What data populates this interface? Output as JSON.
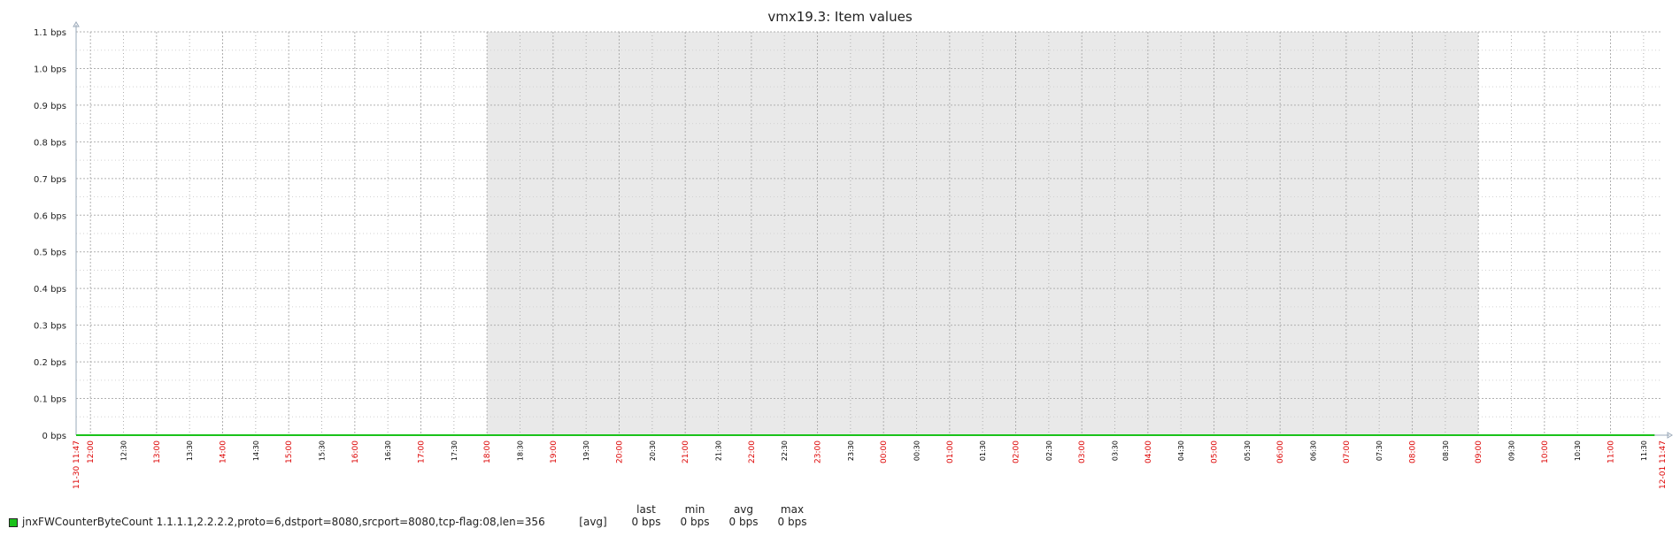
{
  "window": {
    "title": "vmx19.3: Item values"
  },
  "legend": {
    "item_name": "jnxFWCounterByteCount 1.1.1.1,2.2.2.2,proto=6,dstport=8080,srcport=8080,tcp-flag:08,len=356",
    "func": "[avg]",
    "headers": {
      "last": "last",
      "min": "min",
      "avg": "avg",
      "max": "max"
    },
    "values": {
      "last": "0 bps",
      "min": "0 bps",
      "avg": "0 bps",
      "max": "0 bps"
    },
    "color": "#1bc21b"
  },
  "colors": {
    "grid": "#b0b0b0",
    "axis": "#9aa8b8",
    "night": "#e9e9e9",
    "hour_label": "#dd0000",
    "half_label": "#000000",
    "series": "#1bc21b"
  },
  "chart_data": {
    "type": "line",
    "title": "vmx19.3: Item values",
    "xlabel": "",
    "ylabel": "",
    "y_unit": "bps",
    "ylim": [
      0,
      1.1
    ],
    "y_ticks": [
      "1.1 bps",
      "1.0 bps",
      "0.9 bps",
      "0.8 bps",
      "0.7 bps",
      "0.6 bps",
      "0.5 bps",
      "0.4 bps",
      "0.3 bps",
      "0.2 bps",
      "0.1 bps",
      "0 bps"
    ],
    "x_range": [
      "11-30 11:47",
      "12-01 11:47"
    ],
    "x_start_label": "11-30 11:47",
    "x_end_label": "12-01 11:47",
    "x_ticks": [
      "12:00",
      "12:30",
      "13:00",
      "13:30",
      "14:00",
      "14:30",
      "15:00",
      "15:30",
      "16:00",
      "16:30",
      "17:00",
      "17:30",
      "18:00",
      "18:30",
      "19:00",
      "19:30",
      "20:00",
      "20:30",
      "21:00",
      "21:30",
      "22:00",
      "22:30",
      "23:00",
      "23:30",
      "00:00",
      "00:30",
      "01:00",
      "01:30",
      "02:00",
      "02:30",
      "03:00",
      "03:30",
      "04:00",
      "04:30",
      "05:00",
      "05:30",
      "06:00",
      "06:30",
      "07:00",
      "07:30",
      "08:00",
      "08:30",
      "09:00",
      "09:30",
      "10:00",
      "10:30",
      "11:00",
      "11:30"
    ],
    "shaded_period": [
      "18:00",
      "09:00"
    ],
    "grid": true,
    "series": [
      {
        "name": "jnxFWCounterByteCount 1.1.1.1,2.2.2.2,proto=6,dstport=8080,srcport=8080,tcp-flag:08,len=356",
        "x": [
          "11:40",
          "11:47"
        ],
        "values": [
          0,
          0
        ]
      }
    ]
  }
}
